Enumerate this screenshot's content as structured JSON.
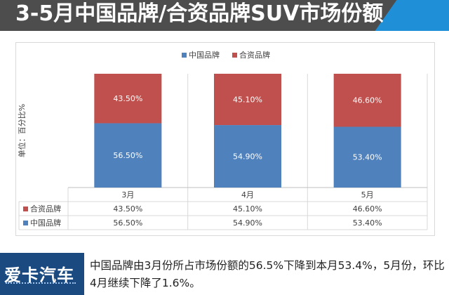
{
  "header": {
    "title": "3-5月中国品牌/合资品牌SUV市场份额"
  },
  "chart_data": {
    "type": "bar",
    "stacked": true,
    "categories": [
      "3月",
      "4月",
      "5月"
    ],
    "series": [
      {
        "name": "中国品牌",
        "values": [
          56.5,
          54.9,
          53.4
        ],
        "labels": [
          "56.50%",
          "54.90%",
          "53.40%"
        ],
        "color": "#4f81bd"
      },
      {
        "name": "合资品牌",
        "values": [
          43.5,
          45.1,
          46.6
        ],
        "labels": [
          "43.50%",
          "45.10%",
          "46.60%"
        ],
        "color": "#c0504d"
      }
    ],
    "ylabel": "单位：百分比%",
    "ylim": [
      0,
      100
    ],
    "legend_position": "top",
    "grid": false,
    "data_table": {
      "rows": [
        {
          "name": "合资品牌",
          "values": [
            "43.50%",
            "45.10%",
            "46.60%"
          ]
        },
        {
          "name": "中国品牌",
          "values": [
            "56.50%",
            "54.90%",
            "53.40%"
          ]
        }
      ]
    }
  },
  "footer": {
    "logo": "爱卡汽车",
    "caption": "中国品牌由3月份所占市场份额的56.5%下降到本月53.4%，5月份，环比4月继续下降了1.6%。"
  }
}
